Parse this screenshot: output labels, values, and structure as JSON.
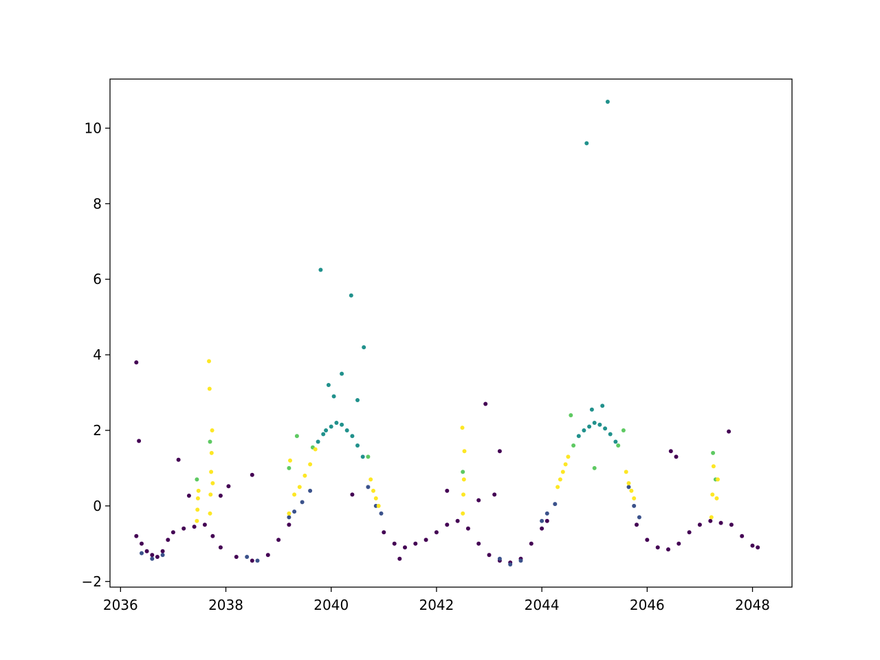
{
  "chart_data": {
    "type": "scatter",
    "title": "",
    "xlabel": "",
    "ylabel": "",
    "xlim": [
      2035.8,
      2048.75
    ],
    "ylim": [
      -2.15,
      11.3
    ],
    "xticks": [
      2036,
      2038,
      2040,
      2042,
      2044,
      2046,
      2048
    ],
    "xtick_labels": [
      "2036",
      "2038",
      "2040",
      "2042",
      "2044",
      "2046",
      "2048"
    ],
    "yticks": [
      -2,
      0,
      2,
      4,
      6,
      8,
      10
    ],
    "ytick_labels": [
      "−2",
      "0",
      "2",
      "4",
      "6",
      "8",
      "10"
    ],
    "grid": false,
    "legend": "none",
    "colormap": "viridis",
    "palette": [
      "#440154",
      "#3b528b",
      "#21918c",
      "#5ec962",
      "#fde725"
    ],
    "series": [
      {
        "color_level": "dark-purple",
        "x": [
          2036.3,
          2036.4,
          2036.5,
          2036.6,
          2036.7,
          2036.8,
          2036.9,
          2037.0,
          2037.2,
          2037.4,
          2037.6,
          2037.75,
          2037.9,
          2038.2,
          2038.5,
          2038.8,
          2039.0,
          2039.2,
          2041.0,
          2041.2,
          2041.3,
          2041.4,
          2041.6,
          2041.8,
          2042.0,
          2042.2,
          2042.4,
          2042.6,
          2042.8,
          2043.0,
          2043.2,
          2043.4,
          2043.6,
          2043.8,
          2044.0,
          2044.1,
          2045.8,
          2046.0,
          2046.2,
          2046.4,
          2046.6,
          2046.8,
          2047.0,
          2047.2,
          2047.4,
          2047.6,
          2047.8,
          2048.0,
          2048.1,
          2036.3,
          2036.35,
          2037.1,
          2037.3,
          2037.9,
          2038.05,
          2038.5,
          2040.4,
          2042.2,
          2042.8,
          2042.93,
          2043.1,
          2043.2,
          2046.45,
          2046.55,
          2047.55
        ],
        "y": [
          -0.8,
          -1.0,
          -1.2,
          -1.3,
          -1.35,
          -1.2,
          -0.9,
          -0.7,
          -0.6,
          -0.55,
          -0.5,
          -0.8,
          -1.1,
          -1.35,
          -1.45,
          -1.3,
          -0.9,
          -0.5,
          -0.7,
          -1.0,
          -1.4,
          -1.1,
          -1.0,
          -0.9,
          -0.7,
          -0.5,
          -0.4,
          -0.6,
          -1.0,
          -1.3,
          -1.45,
          -1.5,
          -1.4,
          -1.0,
          -0.6,
          -0.4,
          -0.5,
          -0.9,
          -1.1,
          -1.15,
          -1.0,
          -0.7,
          -0.5,
          -0.4,
          -0.45,
          -0.5,
          -0.8,
          -1.05,
          -1.1,
          3.8,
          1.72,
          1.22,
          0.27,
          0.27,
          0.52,
          0.82,
          0.3,
          0.4,
          0.15,
          2.7,
          0.3,
          1.45,
          1.45,
          1.3,
          1.97
        ]
      },
      {
        "color_level": "blue",
        "x": [
          2036.4,
          2036.6,
          2036.8,
          2038.4,
          2038.6,
          2039.2,
          2039.3,
          2039.45,
          2039.6,
          2040.7,
          2040.85,
          2040.95,
          2043.2,
          2043.4,
          2043.6,
          2044.0,
          2044.1,
          2044.25,
          2045.65,
          2045.75,
          2045.85
        ],
        "y": [
          -1.25,
          -1.4,
          -1.3,
          -1.35,
          -1.45,
          -0.3,
          -0.15,
          0.1,
          0.4,
          0.5,
          0.0,
          -0.2,
          -1.4,
          -1.55,
          -1.45,
          -0.4,
          -0.2,
          0.05,
          0.5,
          0.0,
          -0.3
        ]
      },
      {
        "color_level": "teal",
        "x": [
          2039.75,
          2039.85,
          2039.9,
          2040.0,
          2040.1,
          2040.2,
          2040.3,
          2040.4,
          2040.5,
          2040.6,
          2044.7,
          2044.8,
          2044.9,
          2045.0,
          2045.1,
          2045.2,
          2045.3,
          2045.4,
          2039.8,
          2040.2,
          2040.38,
          2040.5,
          2040.62,
          2039.95,
          2040.05,
          2044.85,
          2045.25,
          2044.95,
          2045.15
        ],
        "y": [
          1.7,
          1.9,
          2.0,
          2.1,
          2.2,
          2.15,
          2.0,
          1.85,
          1.6,
          1.3,
          1.85,
          2.0,
          2.1,
          2.2,
          2.15,
          2.05,
          1.9,
          1.7,
          6.25,
          3.5,
          5.57,
          2.8,
          4.2,
          3.2,
          2.9,
          9.6,
          10.7,
          2.55,
          2.65
        ]
      },
      {
        "color_level": "green",
        "x": [
          2037.45,
          2037.7,
          2039.2,
          2039.35,
          2039.65,
          2040.7,
          2042.5,
          2044.55,
          2044.6,
          2045.55,
          2047.25,
          2047.3,
          2045.0,
          2045.45
        ],
        "y": [
          0.7,
          1.7,
          1.0,
          1.85,
          1.55,
          1.3,
          0.9,
          2.4,
          1.6,
          2.0,
          1.4,
          0.7,
          1.0,
          1.6
        ]
      },
      {
        "color_level": "yellow",
        "x": [
          2037.45,
          2037.46,
          2037.47,
          2037.48,
          2037.7,
          2037.71,
          2037.72,
          2037.73,
          2037.74,
          2037.75,
          2039.2,
          2039.22,
          2039.3,
          2039.4,
          2039.5,
          2039.6,
          2039.7,
          2040.75,
          2040.8,
          2040.85,
          2040.9,
          2042.5,
          2042.51,
          2042.52,
          2042.53,
          2044.3,
          2044.35,
          2044.4,
          2044.45,
          2044.5,
          2045.6,
          2045.65,
          2045.7,
          2045.75,
          2047.22,
          2047.24,
          2047.26,
          2047.32,
          2047.34,
          2037.68,
          2037.69,
          2042.49
        ],
        "y": [
          -0.4,
          -0.1,
          0.2,
          0.4,
          -0.2,
          0.3,
          0.9,
          1.4,
          2.0,
          0.6,
          -0.2,
          1.2,
          0.3,
          0.5,
          0.8,
          1.1,
          1.5,
          0.7,
          0.4,
          0.2,
          0.0,
          -0.2,
          0.3,
          0.7,
          1.45,
          0.5,
          0.7,
          0.9,
          1.1,
          1.3,
          0.9,
          0.6,
          0.4,
          0.2,
          -0.3,
          0.3,
          1.05,
          0.2,
          0.7,
          3.83,
          3.1,
          2.07
        ]
      }
    ]
  }
}
